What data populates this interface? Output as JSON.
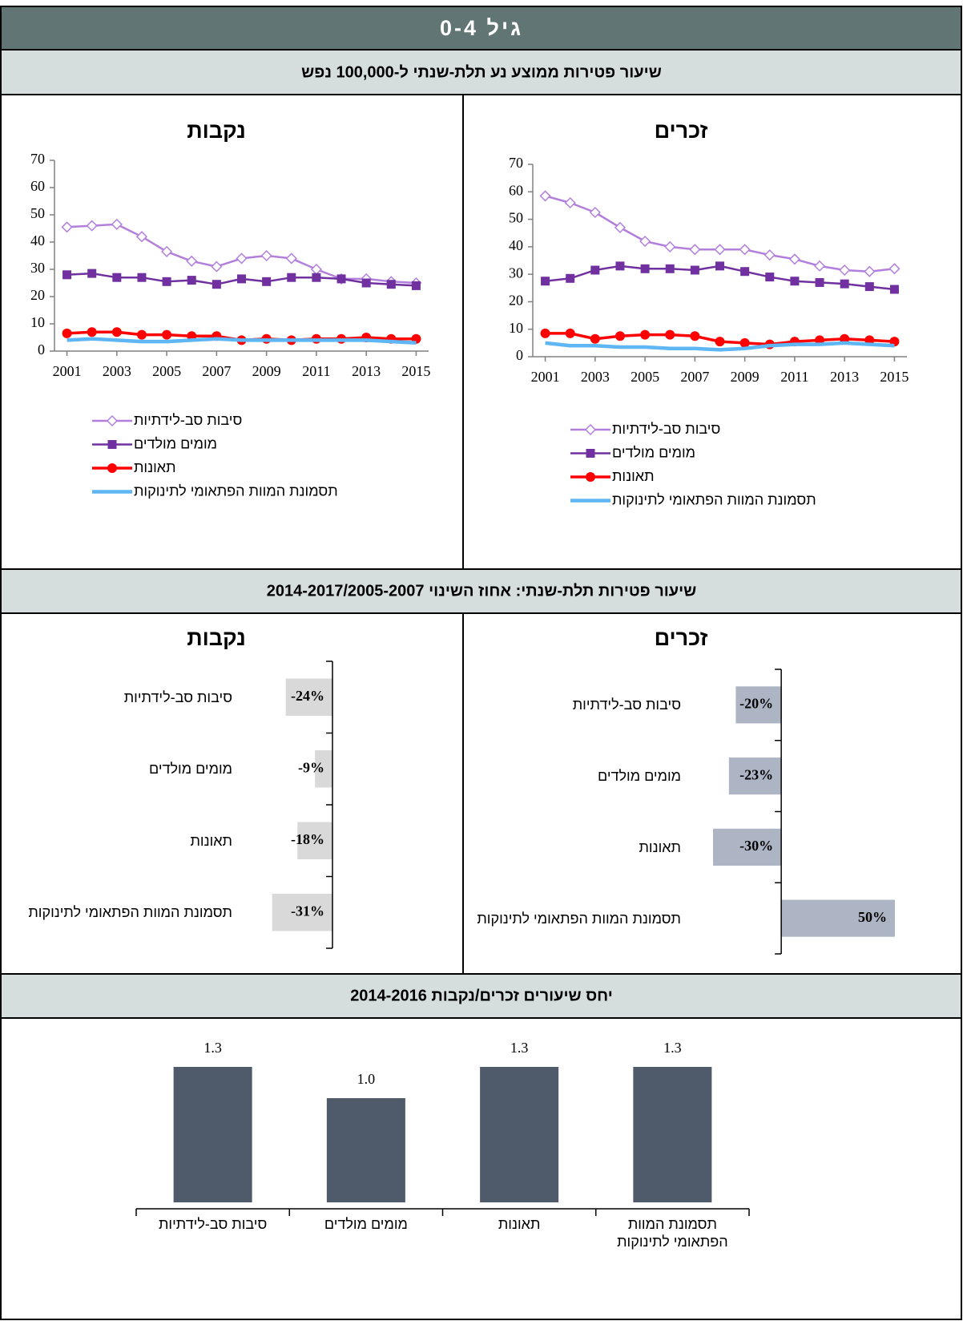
{
  "page": {
    "title": "גיל 0-4",
    "section_titles": [
      "שיעור פטירות ממוצע נע תלת-שנתי ל-100,000 נפש",
      "שיעור פטירות תלת-שנתי: אחוז השינוי 2014-2017/2005-2007",
      "יחס שיעורים זכרים/נקבות 2014-2016"
    ]
  },
  "chart_data": [
    {
      "type": "line",
      "title": "נקבות",
      "x": [
        2001,
        2002,
        2003,
        2004,
        2005,
        2006,
        2007,
        2008,
        2009,
        2010,
        2011,
        2012,
        2013,
        2014,
        2015
      ],
      "xlim": [
        2000.5,
        2015.5
      ],
      "xticks": [
        2001,
        2003,
        2005,
        2007,
        2009,
        2011,
        2013,
        2015
      ],
      "ylim": [
        0,
        70
      ],
      "yticks": [
        0,
        10,
        20,
        30,
        40,
        50,
        60,
        70
      ],
      "series": [
        {
          "name": "סיבות סב-לידתיות",
          "color": "#b27fdc",
          "marker": "diamond",
          "values": [
            45.5,
            46,
            46.5,
            42,
            36.5,
            33,
            31,
            34,
            35,
            34,
            30,
            26.5,
            26.5,
            25.5,
            25
          ]
        },
        {
          "name": "מומים מולדים",
          "color": "#7030a0",
          "marker": "square",
          "values": [
            28,
            28.5,
            27,
            27,
            25.5,
            26,
            24.5,
            26.5,
            25.5,
            27,
            27,
            26.5,
            25,
            24.5,
            24
          ]
        },
        {
          "name": "תאונות",
          "color": "#ff0000",
          "marker": "circle",
          "values": [
            6.5,
            7,
            7,
            6,
            6,
            5.5,
            5.5,
            4,
            4.5,
            4,
            4.5,
            4.5,
            5,
            4.5,
            4.5
          ]
        },
        {
          "name": "תסמונת המוות הפתאומי לתינוקות",
          "color": "#5fb6f5",
          "marker": "none",
          "values": [
            4,
            4.5,
            4,
            3.5,
            3.5,
            4,
            4.5,
            4,
            4,
            4,
            4,
            4,
            4,
            3.5,
            3
          ]
        }
      ]
    },
    {
      "type": "line",
      "title": "זכרים",
      "x": [
        2001,
        2002,
        2003,
        2004,
        2005,
        2006,
        2007,
        2008,
        2009,
        2010,
        2011,
        2012,
        2013,
        2014,
        2015
      ],
      "xlim": [
        2000.5,
        2015.5
      ],
      "xticks": [
        2001,
        2003,
        2005,
        2007,
        2009,
        2011,
        2013,
        2015
      ],
      "ylim": [
        0,
        70
      ],
      "yticks": [
        0,
        10,
        20,
        30,
        40,
        50,
        60,
        70
      ],
      "series": [
        {
          "name": "סיבות סב-לידתיות",
          "color": "#b27fdc",
          "marker": "diamond",
          "values": [
            58.5,
            56,
            52.5,
            47,
            42,
            40,
            39,
            39,
            39,
            37,
            35.5,
            33,
            31.5,
            31,
            32
          ]
        },
        {
          "name": "מומים מולדים",
          "color": "#7030a0",
          "marker": "square",
          "values": [
            27.5,
            28.5,
            31.5,
            33,
            32,
            32,
            31.5,
            33,
            31,
            29,
            27.5,
            27,
            26.5,
            25.5,
            24.5
          ]
        },
        {
          "name": "תאונות",
          "color": "#ff0000",
          "marker": "circle",
          "values": [
            8.5,
            8.5,
            6.5,
            7.5,
            8,
            8,
            7.5,
            5.5,
            5,
            4.5,
            5.5,
            6,
            6.5,
            6,
            5.5
          ]
        },
        {
          "name": "תסמונת המוות הפתאומי לתינוקות",
          "color": "#5fb6f5",
          "marker": "none",
          "values": [
            5,
            4,
            4,
            3.5,
            3.5,
            3,
            3,
            2.5,
            3,
            4,
            4.5,
            4.5,
            5,
            4.5,
            4
          ]
        }
      ]
    },
    {
      "type": "hbar",
      "title": "נקבות",
      "categories": [
        "סיבות סב-לידתיות",
        "מומים מולדים",
        "תאונות",
        "תסמונת המוות הפתאומי לתינוקות"
      ],
      "values": [
        -24,
        -9,
        -18,
        -31
      ],
      "value_labels": [
        "-24%",
        "-9%",
        "-18%",
        "-31%"
      ],
      "color": "#d9d9d9",
      "xlim": [
        -35,
        0
      ]
    },
    {
      "type": "hbar",
      "title": "זכרים",
      "categories": [
        "סיבות סב-לידתיות",
        "מומים מולדים",
        "תאונות",
        "תסמונת המוות הפתאומי לתינוקות"
      ],
      "values": [
        -20,
        -23,
        -30,
        50
      ],
      "value_labels": [
        "-20%",
        "-23%",
        "-30%",
        "50%"
      ],
      "color": "#adb5c5",
      "xlim": [
        -30,
        50
      ]
    },
    {
      "type": "bar",
      "categories": [
        "סיבות סב-לידתיות",
        "מומים מולדים",
        "תאונות",
        "תסמונת המוות הפתאומי לתינוקות"
      ],
      "values": [
        1.3,
        1.0,
        1.3,
        1.3
      ],
      "value_labels": [
        "1.3",
        "1.0",
        "1.3",
        "1.3"
      ],
      "color": "#4f5a6b",
      "ylim": [
        0,
        1.6
      ]
    }
  ]
}
